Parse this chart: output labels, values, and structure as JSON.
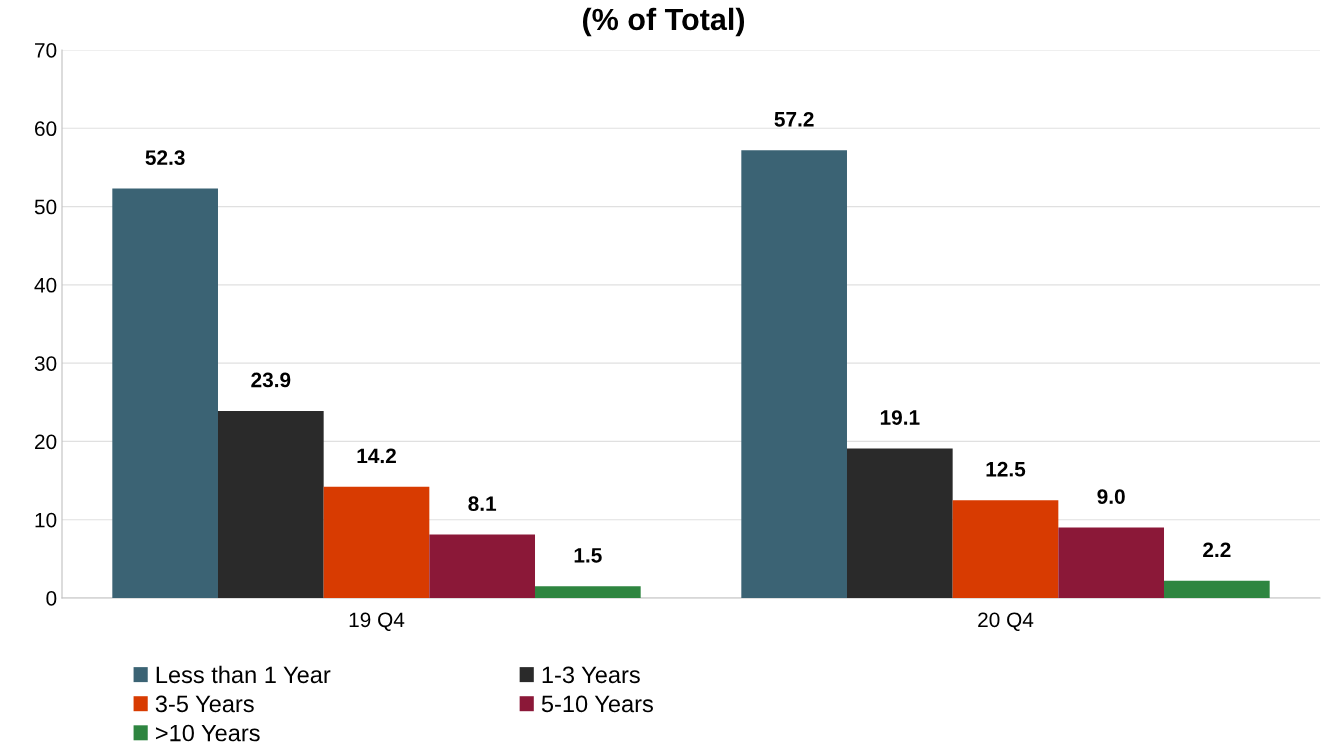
{
  "chart_data": {
    "type": "bar",
    "title": "(% of Total)",
    "categories": [
      "19 Q4",
      "20 Q4"
    ],
    "series": [
      {
        "name": "Less than 1 Year",
        "color": "#3b6374",
        "values": [
          52.3,
          57.2
        ],
        "value_labels": [
          "52.3",
          "57.2"
        ]
      },
      {
        "name": "1-3 Years",
        "color": "#2a2a2a",
        "values": [
          23.9,
          19.1
        ],
        "value_labels": [
          "23.9",
          "19.1"
        ]
      },
      {
        "name": "3-5 Years",
        "color": "#d83b01",
        "values": [
          14.2,
          12.5
        ],
        "value_labels": [
          "14.2",
          "12.5"
        ]
      },
      {
        "name": "5-10 Years",
        "color": "#8b1838",
        "values": [
          8.1,
          9.0
        ],
        "value_labels": [
          "8.1",
          "9.0"
        ]
      },
      {
        "name": ">10 Years",
        "color": "#2e8540",
        "values": [
          1.5,
          2.2
        ],
        "value_labels": [
          "1.5",
          "2.2"
        ]
      }
    ],
    "ylim": [
      0,
      70
    ],
    "yticks": [
      0,
      10,
      20,
      30,
      40,
      50,
      60,
      70
    ],
    "grid": "y",
    "legend": "bottom"
  }
}
